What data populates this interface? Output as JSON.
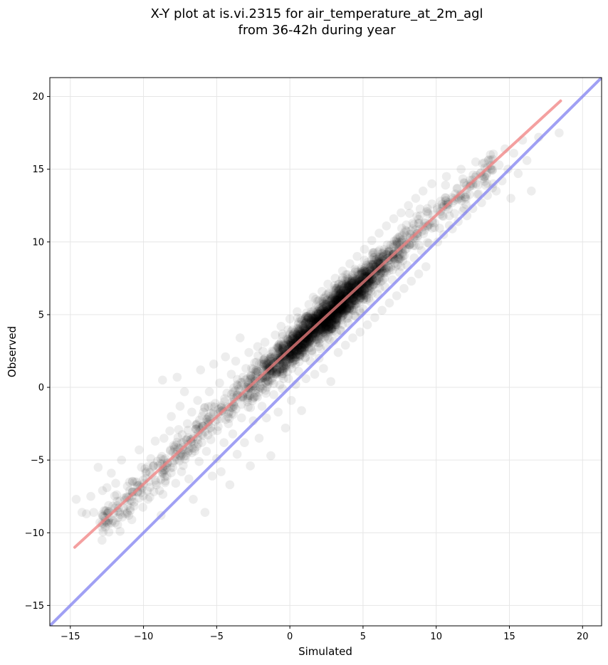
{
  "chart_data": {
    "type": "scatter",
    "title": "X-Y plot at is.vi.2315 for air_temperature_at_2m_agl",
    "subtitle": "from 36-42h during year",
    "xlabel": "Simulated",
    "ylabel": "Observed",
    "xlim": [
      -16.4,
      21.3
    ],
    "ylim": [
      -16.4,
      21.3
    ],
    "xticks": [
      -15,
      -10,
      -5,
      0,
      5,
      10,
      15,
      20
    ],
    "yticks": [
      -15,
      -10,
      -5,
      0,
      5,
      10,
      15,
      20
    ],
    "xtick_labels": [
      "−15",
      "−10",
      "−5",
      "0",
      "5",
      "10",
      "15",
      "20"
    ],
    "ytick_labels": [
      "−15",
      "−10",
      "−5",
      "0",
      "5",
      "10",
      "15",
      "20"
    ],
    "grid": true,
    "point_color": "#000000",
    "point_alpha": 0.07,
    "fit_line": {
      "color": "#f08080",
      "x": [
        -14.7,
        18.5
      ],
      "y": [
        -11.0,
        19.7
      ]
    },
    "identity_line": {
      "color": "#8080f0",
      "x": [
        -16.4,
        21.3
      ],
      "y": [
        -16.4,
        21.3
      ]
    },
    "points": [
      [
        -14.6,
        -7.7
      ],
      [
        -14.2,
        -8.6
      ],
      [
        -13.9,
        -8.7
      ],
      [
        -13.6,
        -7.5
      ],
      [
        -13.4,
        -8.6
      ],
      [
        -13.1,
        -5.5
      ],
      [
        -12.8,
        -7.1
      ],
      [
        -12.5,
        -6.9
      ],
      [
        -12.2,
        -5.9
      ],
      [
        -11.9,
        -6.6
      ],
      [
        -11.7,
        -8.3
      ],
      [
        -11.6,
        -9.9
      ],
      [
        -11.5,
        -5.0
      ],
      [
        -11.3,
        -7.6
      ],
      [
        -11.1,
        -6.8
      ],
      [
        -11.0,
        -8.8
      ],
      [
        -10.8,
        -9.1
      ],
      [
        -10.6,
        -6.5
      ],
      [
        -10.4,
        -7.2
      ],
      [
        -10.3,
        -4.3
      ],
      [
        -10.1,
        -6.9
      ],
      [
        -9.9,
        -5.6
      ],
      [
        -9.7,
        -7.7
      ],
      [
        -9.5,
        -4.9
      ],
      [
        -9.4,
        -6.0
      ],
      [
        -9.2,
        -3.7
      ],
      [
        -9.0,
        -5.4
      ],
      [
        -8.9,
        -7.1
      ],
      [
        -8.8,
        -8.8
      ],
      [
        -8.7,
        0.5
      ],
      [
        -8.6,
        -3.5
      ],
      [
        -8.5,
        -4.9
      ],
      [
        -8.4,
        -6.1
      ],
      [
        -8.2,
        -3.0
      ],
      [
        -8.1,
        -2.0
      ],
      [
        -8.0,
        -5.5
      ],
      [
        -7.9,
        -4.1
      ],
      [
        -7.8,
        -6.6
      ],
      [
        -7.7,
        0.7
      ],
      [
        -7.6,
        -2.9
      ],
      [
        -7.5,
        -1.3
      ],
      [
        -7.4,
        -5.8
      ],
      [
        -7.3,
        -3.8
      ],
      [
        -7.2,
        -0.3
      ],
      [
        -7.1,
        -4.7
      ],
      [
        -7.0,
        -2.5
      ],
      [
        -6.9,
        -6.3
      ],
      [
        -6.8,
        -3.6
      ],
      [
        -6.7,
        -1.7
      ],
      [
        -6.6,
        -7.7
      ],
      [
        -6.5,
        -4.2
      ],
      [
        -6.4,
        -2.6
      ],
      [
        -6.3,
        -0.9
      ],
      [
        -6.2,
        -5.1
      ],
      [
        -6.1,
        1.2
      ],
      [
        -6.0,
        -3.2
      ],
      [
        -5.9,
        -1.7
      ],
      [
        -5.8,
        -8.6
      ],
      [
        -5.7,
        -4.4
      ],
      [
        -5.6,
        -2.4
      ],
      [
        -5.5,
        -0.3
      ],
      [
        -5.4,
        -3.6
      ],
      [
        -5.3,
        -6.1
      ],
      [
        -5.2,
        1.6
      ],
      [
        -5.1,
        -1.1
      ],
      [
        -5.0,
        -4.9
      ],
      [
        -4.9,
        -2.7
      ],
      [
        -4.8,
        0.3
      ],
      [
        -4.7,
        -5.8
      ],
      [
        -4.6,
        -1.6
      ],
      [
        -4.5,
        -3.8
      ],
      [
        -4.4,
        2.1
      ],
      [
        -4.3,
        -0.4
      ],
      [
        -4.2,
        -2.5
      ],
      [
        -4.1,
        -6.7
      ],
      [
        -4.0,
        0.9
      ],
      [
        -3.9,
        -3.2
      ],
      [
        -3.8,
        -1.3
      ],
      [
        -3.7,
        1.8
      ],
      [
        -3.6,
        -4.6
      ],
      [
        -3.5,
        -0.1
      ],
      [
        -3.4,
        3.4
      ],
      [
        -3.3,
        -2.1
      ],
      [
        -3.2,
        0.7
      ],
      [
        -3.1,
        -3.8
      ],
      [
        -3.0,
        1.3
      ],
      [
        -2.9,
        -1.0
      ],
      [
        -2.8,
        2.4
      ],
      [
        -2.7,
        -5.4
      ],
      [
        -2.6,
        0.1
      ],
      [
        -2.5,
        -2.3
      ],
      [
        -2.4,
        1.7
      ],
      [
        -2.3,
        -0.6
      ],
      [
        -2.2,
        2.8
      ],
      [
        -2.1,
        -3.5
      ],
      [
        -2.0,
        0.6
      ],
      [
        -1.9,
        -1.3
      ],
      [
        -1.8,
        1.9
      ],
      [
        -1.7,
        3.1
      ],
      [
        -1.6,
        -2.1
      ],
      [
        -1.5,
        0.2
      ],
      [
        -1.4,
        1.3
      ],
      [
        -1.3,
        -4.7
      ],
      [
        -1.2,
        2.5
      ],
      [
        -1.1,
        -0.5
      ],
      [
        -1.0,
        3.6
      ],
      [
        -0.9,
        0.9
      ],
      [
        -0.8,
        -1.7
      ],
      [
        -0.7,
        2.1
      ],
      [
        -0.6,
        4.2
      ],
      [
        -0.5,
        -0.1
      ],
      [
        -0.4,
        1.5
      ],
      [
        -0.3,
        -2.8
      ],
      [
        -0.2,
        3.0
      ],
      [
        -0.1,
        0.6
      ],
      [
        0.0,
        2.2
      ],
      [
        0.0,
        4.7
      ],
      [
        0.1,
        -0.9
      ],
      [
        0.2,
        1.8
      ],
      [
        0.3,
        3.4
      ],
      [
        0.4,
        0.2
      ],
      [
        0.5,
        2.7
      ],
      [
        0.5,
        5.2
      ],
      [
        0.6,
        1.1
      ],
      [
        0.7,
        3.9
      ],
      [
        0.8,
        -1.6
      ],
      [
        0.9,
        2.4
      ],
      [
        1.0,
        4.4
      ],
      [
        1.1,
        0.6
      ],
      [
        1.2,
        3.1
      ],
      [
        1.3,
        5.7
      ],
      [
        1.4,
        1.8
      ],
      [
        1.5,
        4.0
      ],
      [
        1.5,
        2.5
      ],
      [
        1.6,
        6.2
      ],
      [
        1.7,
        0.9
      ],
      [
        1.8,
        3.5
      ],
      [
        1.9,
        5.1
      ],
      [
        2.0,
        2.0
      ],
      [
        2.1,
        4.6
      ],
      [
        2.2,
        6.6
      ],
      [
        2.3,
        1.3
      ],
      [
        2.4,
        3.8
      ],
      [
        2.5,
        5.6
      ],
      [
        2.5,
        2.8
      ],
      [
        2.6,
        7.1
      ],
      [
        2.7,
        4.2
      ],
      [
        2.8,
        0.4
      ],
      [
        2.9,
        5.9
      ],
      [
        3.0,
        3.2
      ],
      [
        3.1,
        7.5
      ],
      [
        3.2,
        4.8
      ],
      [
        3.3,
        2.4
      ],
      [
        3.4,
        6.4
      ],
      [
        3.5,
        3.9
      ],
      [
        3.6,
        8.0
      ],
      [
        3.7,
        5.3
      ],
      [
        3.8,
        2.9
      ],
      [
        3.9,
        6.9
      ],
      [
        4.0,
        4.4
      ],
      [
        4.1,
        8.5
      ],
      [
        4.2,
        5.8
      ],
      [
        4.3,
        3.4
      ],
      [
        4.4,
        7.3
      ],
      [
        4.5,
        4.9
      ],
      [
        4.6,
        9.0
      ],
      [
        4.7,
        6.3
      ],
      [
        4.8,
        3.8
      ],
      [
        4.9,
        7.8
      ],
      [
        5.0,
        5.4
      ],
      [
        5.1,
        9.5
      ],
      [
        5.2,
        6.8
      ],
      [
        5.3,
        4.3
      ],
      [
        5.4,
        8.3
      ],
      [
        5.5,
        5.9
      ],
      [
        5.6,
        10.1
      ],
      [
        5.7,
        7.3
      ],
      [
        5.8,
        4.8
      ],
      [
        5.9,
        8.8
      ],
      [
        6.0,
        6.4
      ],
      [
        6.1,
        10.6
      ],
      [
        6.2,
        7.8
      ],
      [
        6.3,
        5.3
      ],
      [
        6.4,
        9.3
      ],
      [
        6.5,
        6.9
      ],
      [
        6.6,
        11.1
      ],
      [
        6.7,
        8.3
      ],
      [
        6.8,
        5.8
      ],
      [
        6.9,
        9.8
      ],
      [
        7.0,
        7.4
      ],
      [
        7.1,
        11.6
      ],
      [
        7.2,
        8.8
      ],
      [
        7.3,
        6.3
      ],
      [
        7.4,
        10.3
      ],
      [
        7.5,
        7.9
      ],
      [
        7.6,
        12.0
      ],
      [
        7.7,
        9.3
      ],
      [
        7.8,
        6.8
      ],
      [
        7.9,
        10.8
      ],
      [
        8.0,
        8.4
      ],
      [
        8.1,
        12.5
      ],
      [
        8.2,
        9.8
      ],
      [
        8.3,
        7.3
      ],
      [
        8.4,
        11.3
      ],
      [
        8.5,
        8.9
      ],
      [
        8.6,
        13.0
      ],
      [
        8.7,
        10.3
      ],
      [
        8.8,
        7.8
      ],
      [
        8.9,
        11.8
      ],
      [
        9.0,
        9.4
      ],
      [
        9.1,
        13.5
      ],
      [
        9.2,
        10.8
      ],
      [
        9.3,
        8.3
      ],
      [
        9.4,
        12.3
      ],
      [
        9.5,
        9.9
      ],
      [
        9.7,
        14.0
      ],
      [
        9.9,
        11.3
      ],
      [
        10.1,
        10.0
      ],
      [
        10.3,
        12.8
      ],
      [
        10.5,
        10.5
      ],
      [
        10.7,
        14.5
      ],
      [
        10.9,
        11.8
      ],
      [
        11.1,
        10.9
      ],
      [
        11.3,
        13.3
      ],
      [
        11.5,
        11.4
      ],
      [
        11.7,
        15.0
      ],
      [
        11.9,
        12.3
      ],
      [
        12.1,
        11.8
      ],
      [
        12.3,
        13.8
      ],
      [
        12.5,
        12.3
      ],
      [
        12.7,
        15.5
      ],
      [
        12.9,
        13.3
      ],
      [
        13.1,
        12.7
      ],
      [
        13.3,
        14.5
      ],
      [
        13.5,
        13.2
      ],
      [
        13.7,
        16.0
      ],
      [
        13.9,
        14.0
      ],
      [
        14.1,
        13.5
      ],
      [
        14.3,
        15.3
      ],
      [
        14.5,
        14.2
      ],
      [
        14.7,
        16.4
      ],
      [
        14.9,
        15.0
      ],
      [
        15.1,
        13.0
      ],
      [
        15.3,
        16.1
      ],
      [
        15.6,
        14.7
      ],
      [
        15.9,
        17.0
      ],
      [
        16.2,
        15.6
      ],
      [
        16.5,
        13.5
      ],
      [
        17.0,
        17.2
      ],
      [
        18.4,
        17.5
      ]
    ]
  }
}
